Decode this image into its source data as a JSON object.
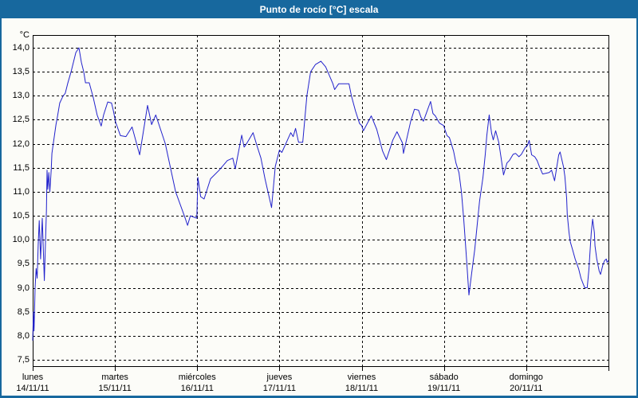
{
  "window": {
    "title": "Punto de rocío [°C] escala"
  },
  "colors": {
    "frame": "#17689e",
    "title_bg": "#17689e",
    "title_text": "#ffffff",
    "line": "#2222cc",
    "grid": "#000000",
    "background": "#fcfcf8"
  },
  "chart_data": {
    "type": "line",
    "title": "Punto de rocío [°C] escala",
    "ylabel": "°C",
    "xlabel": "",
    "ylim": [
      7.5,
      14.0
    ],
    "grid": "dashed",
    "legend_position": "none",
    "y_ticks": [
      {
        "value": 14.0,
        "label": "14,0"
      },
      {
        "value": 13.5,
        "label": "13,5"
      },
      {
        "value": 13.0,
        "label": "13,0"
      },
      {
        "value": 12.5,
        "label": "12,5"
      },
      {
        "value": 12.0,
        "label": "12,0"
      },
      {
        "value": 11.5,
        "label": "11,5"
      },
      {
        "value": 11.0,
        "label": "11,0"
      },
      {
        "value": 10.5,
        "label": "10,5"
      },
      {
        "value": 10.0,
        "label": "10,0"
      },
      {
        "value": 9.5,
        "label": "9,5"
      },
      {
        "value": 9.0,
        "label": "9,0"
      },
      {
        "value": 8.5,
        "label": "8,5"
      },
      {
        "value": 8.0,
        "label": "8,0"
      },
      {
        "value": 7.5,
        "label": "7,5"
      }
    ],
    "x_days": [
      {
        "name": "lunes",
        "date": "14/11/11"
      },
      {
        "name": "martes",
        "date": "15/11/11"
      },
      {
        "name": "miércoles",
        "date": "16/11/11"
      },
      {
        "name": "jueves",
        "date": "17/11/11"
      },
      {
        "name": "viernes",
        "date": "18/11/11"
      },
      {
        "name": "sábado",
        "date": "19/11/11"
      },
      {
        "name": "domingo",
        "date": "20/11/11"
      }
    ],
    "x_unit": "hours_from_monday_00",
    "x_range_hours": [
      0,
      168
    ],
    "series": [
      {
        "name": "Punto de rocío",
        "color": "#2222cc",
        "points": [
          [
            0,
            7.9
          ],
          [
            0.2,
            8.5
          ],
          [
            0.4,
            8.1
          ],
          [
            0.7,
            9.0
          ],
          [
            1.0,
            9.4
          ],
          [
            1.3,
            9.2
          ],
          [
            1.6,
            9.9
          ],
          [
            1.9,
            10.4
          ],
          [
            2.3,
            9.6
          ],
          [
            2.8,
            10.45
          ],
          [
            3.4,
            9.15
          ],
          [
            4.0,
            10.6
          ],
          [
            4.2,
            11.45
          ],
          [
            4.4,
            11.05
          ],
          [
            4.7,
            11.4
          ],
          [
            5.0,
            11.0
          ],
          [
            5.4,
            11.45
          ],
          [
            5.6,
            11.8
          ],
          [
            6.0,
            12.0
          ],
          [
            6.8,
            12.4
          ],
          [
            7.2,
            12.55
          ],
          [
            7.9,
            12.85
          ],
          [
            8.9,
            13.0
          ],
          [
            9.5,
            13.05
          ],
          [
            10.2,
            13.25
          ],
          [
            11.2,
            13.5
          ],
          [
            11.9,
            13.7
          ],
          [
            12.6,
            13.9
          ],
          [
            13.5,
            14.0
          ],
          [
            14.2,
            13.7
          ],
          [
            14.9,
            13.5
          ],
          [
            15.4,
            13.27
          ],
          [
            16.5,
            13.27
          ],
          [
            17.7,
            12.95
          ],
          [
            18.8,
            12.6
          ],
          [
            20.0,
            12.37
          ],
          [
            20.7,
            12.6
          ],
          [
            21.9,
            12.87
          ],
          [
            23.0,
            12.85
          ],
          [
            23.5,
            12.7
          ],
          [
            24.2,
            12.45
          ],
          [
            25.6,
            12.17
          ],
          [
            27.2,
            12.15
          ],
          [
            29.0,
            12.35
          ],
          [
            31.2,
            11.77
          ],
          [
            33.5,
            12.8
          ],
          [
            34.7,
            12.4
          ],
          [
            35.9,
            12.6
          ],
          [
            38.7,
            12.0
          ],
          [
            41.7,
            11.0
          ],
          [
            44.5,
            10.45
          ],
          [
            45.2,
            10.3
          ],
          [
            46.0,
            10.5
          ],
          [
            47.9,
            10.45
          ],
          [
            48.2,
            11.3
          ],
          [
            49.0,
            10.9
          ],
          [
            50.0,
            10.85
          ],
          [
            51.9,
            11.27
          ],
          [
            54.4,
            11.45
          ],
          [
            56.8,
            11.65
          ],
          [
            58.4,
            11.7
          ],
          [
            59.1,
            11.48
          ],
          [
            61.0,
            12.18
          ],
          [
            61.7,
            11.93
          ],
          [
            62.4,
            12.0
          ],
          [
            64.3,
            12.23
          ],
          [
            65.4,
            11.97
          ],
          [
            66.6,
            11.7
          ],
          [
            67.8,
            11.27
          ],
          [
            69.7,
            10.67
          ],
          [
            70.8,
            11.53
          ],
          [
            72.0,
            11.87
          ],
          [
            72.7,
            11.82
          ],
          [
            74.8,
            12.15
          ],
          [
            75.3,
            12.23
          ],
          [
            76.0,
            12.15
          ],
          [
            76.7,
            12.32
          ],
          [
            77.6,
            12.03
          ],
          [
            78.8,
            12.03
          ],
          [
            80.0,
            13.0
          ],
          [
            81.1,
            13.5
          ],
          [
            82.5,
            13.65
          ],
          [
            84.1,
            13.72
          ],
          [
            85.5,
            13.6
          ],
          [
            87.6,
            13.25
          ],
          [
            88.1,
            13.13
          ],
          [
            89.3,
            13.25
          ],
          [
            92.3,
            13.25
          ],
          [
            93.0,
            13.0
          ],
          [
            94.2,
            12.68
          ],
          [
            95.4,
            12.42
          ],
          [
            96.0,
            12.38
          ],
          [
            96.5,
            12.27
          ],
          [
            98.8,
            12.58
          ],
          [
            100.4,
            12.3
          ],
          [
            102.1,
            11.85
          ],
          [
            103.2,
            11.67
          ],
          [
            105.1,
            12.08
          ],
          [
            106.3,
            12.25
          ],
          [
            107.9,
            12.02
          ],
          [
            108.2,
            11.8
          ],
          [
            110.3,
            12.47
          ],
          [
            111.4,
            12.72
          ],
          [
            112.6,
            12.7
          ],
          [
            113.3,
            12.55
          ],
          [
            114.0,
            12.47
          ],
          [
            116.1,
            12.88
          ],
          [
            116.8,
            12.63
          ],
          [
            117.5,
            12.58
          ],
          [
            118.7,
            12.43
          ],
          [
            119.9,
            12.38
          ],
          [
            120.9,
            12.17
          ],
          [
            121.6,
            12.13
          ],
          [
            122.8,
            11.85
          ],
          [
            123.5,
            11.6
          ],
          [
            124.4,
            11.4
          ],
          [
            125.1,
            11.0
          ],
          [
            125.8,
            10.4
          ],
          [
            126.6,
            9.6
          ],
          [
            127.3,
            8.85
          ],
          [
            128.1,
            9.3
          ],
          [
            129.0,
            9.8
          ],
          [
            129.7,
            10.3
          ],
          [
            130.4,
            10.8
          ],
          [
            131.4,
            11.3
          ],
          [
            132.1,
            11.8
          ],
          [
            132.5,
            12.17
          ],
          [
            133.2,
            12.6
          ],
          [
            133.9,
            12.22
          ],
          [
            134.4,
            12.08
          ],
          [
            135.1,
            12.27
          ],
          [
            136.0,
            12.03
          ],
          [
            136.7,
            11.7
          ],
          [
            137.4,
            11.35
          ],
          [
            138.4,
            11.6
          ],
          [
            139.1,
            11.65
          ],
          [
            140.2,
            11.78
          ],
          [
            140.9,
            11.8
          ],
          [
            141.9,
            11.73
          ],
          [
            142.6,
            11.78
          ],
          [
            143.7,
            11.92
          ],
          [
            144.4,
            11.97
          ],
          [
            144.9,
            12.07
          ],
          [
            145.6,
            11.77
          ],
          [
            146.5,
            11.73
          ],
          [
            147.2,
            11.65
          ],
          [
            147.9,
            11.52
          ],
          [
            148.8,
            11.37
          ],
          [
            150.7,
            11.4
          ],
          [
            151.4,
            11.45
          ],
          [
            152.3,
            11.23
          ],
          [
            153.5,
            11.77
          ],
          [
            153.9,
            11.83
          ],
          [
            154.9,
            11.52
          ],
          [
            155.3,
            11.32
          ],
          [
            155.8,
            10.87
          ],
          [
            156.0,
            10.53
          ],
          [
            156.5,
            10.15
          ],
          [
            156.9,
            9.95
          ],
          [
            157.6,
            9.78
          ],
          [
            158.3,
            9.6
          ],
          [
            159.3,
            9.4
          ],
          [
            160.0,
            9.2
          ],
          [
            160.7,
            9.07
          ],
          [
            161.1,
            9.0
          ],
          [
            161.8,
            9.0
          ],
          [
            162.3,
            9.37
          ],
          [
            162.7,
            9.82
          ],
          [
            163.0,
            10.15
          ],
          [
            163.4,
            10.43
          ],
          [
            163.9,
            10.15
          ],
          [
            164.1,
            9.87
          ],
          [
            164.6,
            9.6
          ],
          [
            165.3,
            9.35
          ],
          [
            165.7,
            9.28
          ],
          [
            166.4,
            9.48
          ],
          [
            166.9,
            9.57
          ],
          [
            167.4,
            9.6
          ],
          [
            167.6,
            9.53
          ],
          [
            168.0,
            9.57
          ]
        ]
      }
    ]
  }
}
